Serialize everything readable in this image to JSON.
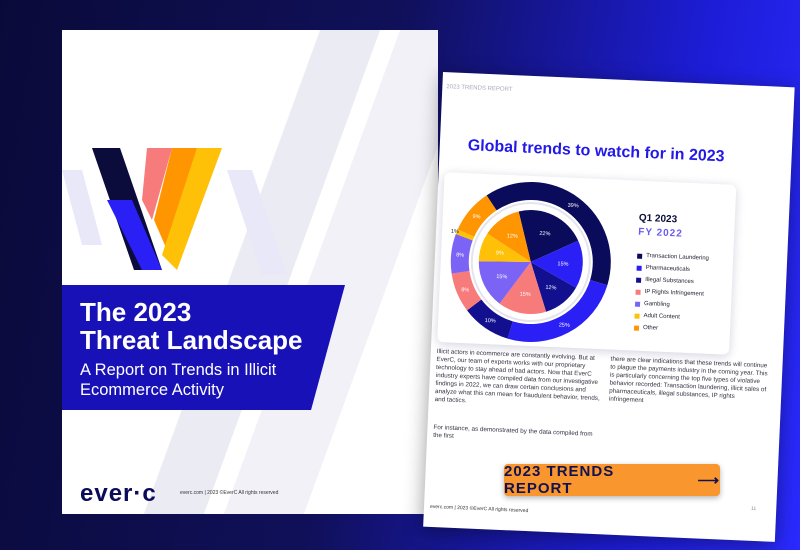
{
  "cover": {
    "title_line1": "The 2023",
    "title_line2": "Threat Landscape",
    "subtitle_line1": "A Report on Trends in Illicit",
    "subtitle_line2": "Ecommerce Activity",
    "logo": "ever·c",
    "footer": "everc.com  |  2023 ©EverC All rights reserved"
  },
  "page": {
    "tag": "2023 TRENDS REPORT",
    "title": "Global trends to watch for in 2023",
    "body_left": "Illicit actors in ecommerce are constantly evolving. But at EverC, our team of experts works with our proprietary technology to stay ahead of bad actors. Now that EverC industry experts have compiled data from our investigative findings in 2022, we can draw certain conclusions and analyze what this can mean for fraudulent behavior, trends, and tactics.",
    "body_left2": "For instance, as demonstrated by the data compiled from the first",
    "body_right": "there are clear indications that these trends will continue to plague the payments industry in the coming year. This is particularly concerning the top five types of violative behavior recorded: Transaction laundering, illicit sales of pharmaceuticals, illegal substances, IP rights infringement",
    "footer": "everc.com  |  2023 ©EverC All rights reserved",
    "page_num": "11"
  },
  "chart_data": {
    "type": "pie",
    "title": "Global trends to watch for in 2023",
    "categories": [
      "Transaction Laundering",
      "Pharmaceuticals",
      "Illegal Substances",
      "IP Rights Infringement",
      "Gambling",
      "Adult Content",
      "Other"
    ],
    "colors": [
      "#0b0b5c",
      "#2a1ff5",
      "#12108f",
      "#f77b7b",
      "#7b63f5",
      "#ffc107",
      "#ff9500"
    ],
    "series": [
      {
        "name": "Q1 2023",
        "ring": "outer",
        "values": [
          39,
          25,
          10,
          8,
          8,
          1,
          9
        ]
      },
      {
        "name": "FY 2022",
        "ring": "inner",
        "values": [
          22,
          15,
          12,
          15,
          15,
          9,
          12
        ]
      }
    ],
    "legend": "right"
  },
  "cta": {
    "label": "2023 TRENDS REPORT",
    "arrow": "⟶"
  }
}
